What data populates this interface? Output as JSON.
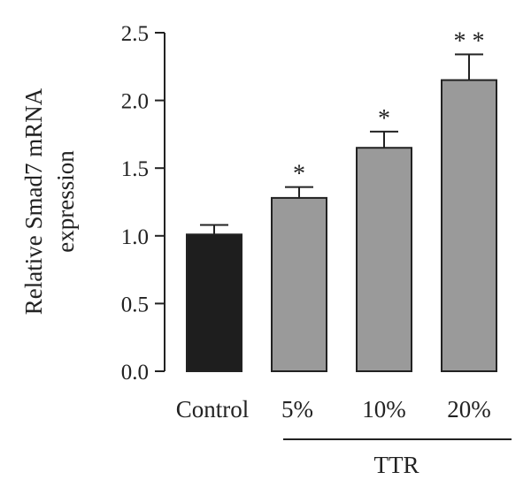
{
  "chart_data": {
    "type": "bar",
    "categories": [
      "Control",
      "5%",
      "10%",
      "20%"
    ],
    "values": [
      1.01,
      1.28,
      1.65,
      2.15
    ],
    "errors": [
      0.07,
      0.08,
      0.12,
      0.19
    ],
    "significance": [
      "",
      "*",
      "*",
      "* *"
    ],
    "bar_colors": [
      "#1e1e1e",
      "#9a9a9a",
      "#9a9a9a",
      "#9a9a9a"
    ],
    "bar_edge_color": "#222222",
    "ylabel_lines": [
      "Relative Smad7 mRNA",
      "expression"
    ],
    "xlabel": "",
    "title": "",
    "ylim": [
      0,
      2.5
    ],
    "yticks": [
      "0.0",
      "0.5",
      "1.0",
      "1.5",
      "2.0",
      "2.5"
    ],
    "grid": false,
    "legend": "none",
    "group_label": {
      "text": "TTR",
      "categories": [
        "5%",
        "10%",
        "20%"
      ]
    }
  }
}
